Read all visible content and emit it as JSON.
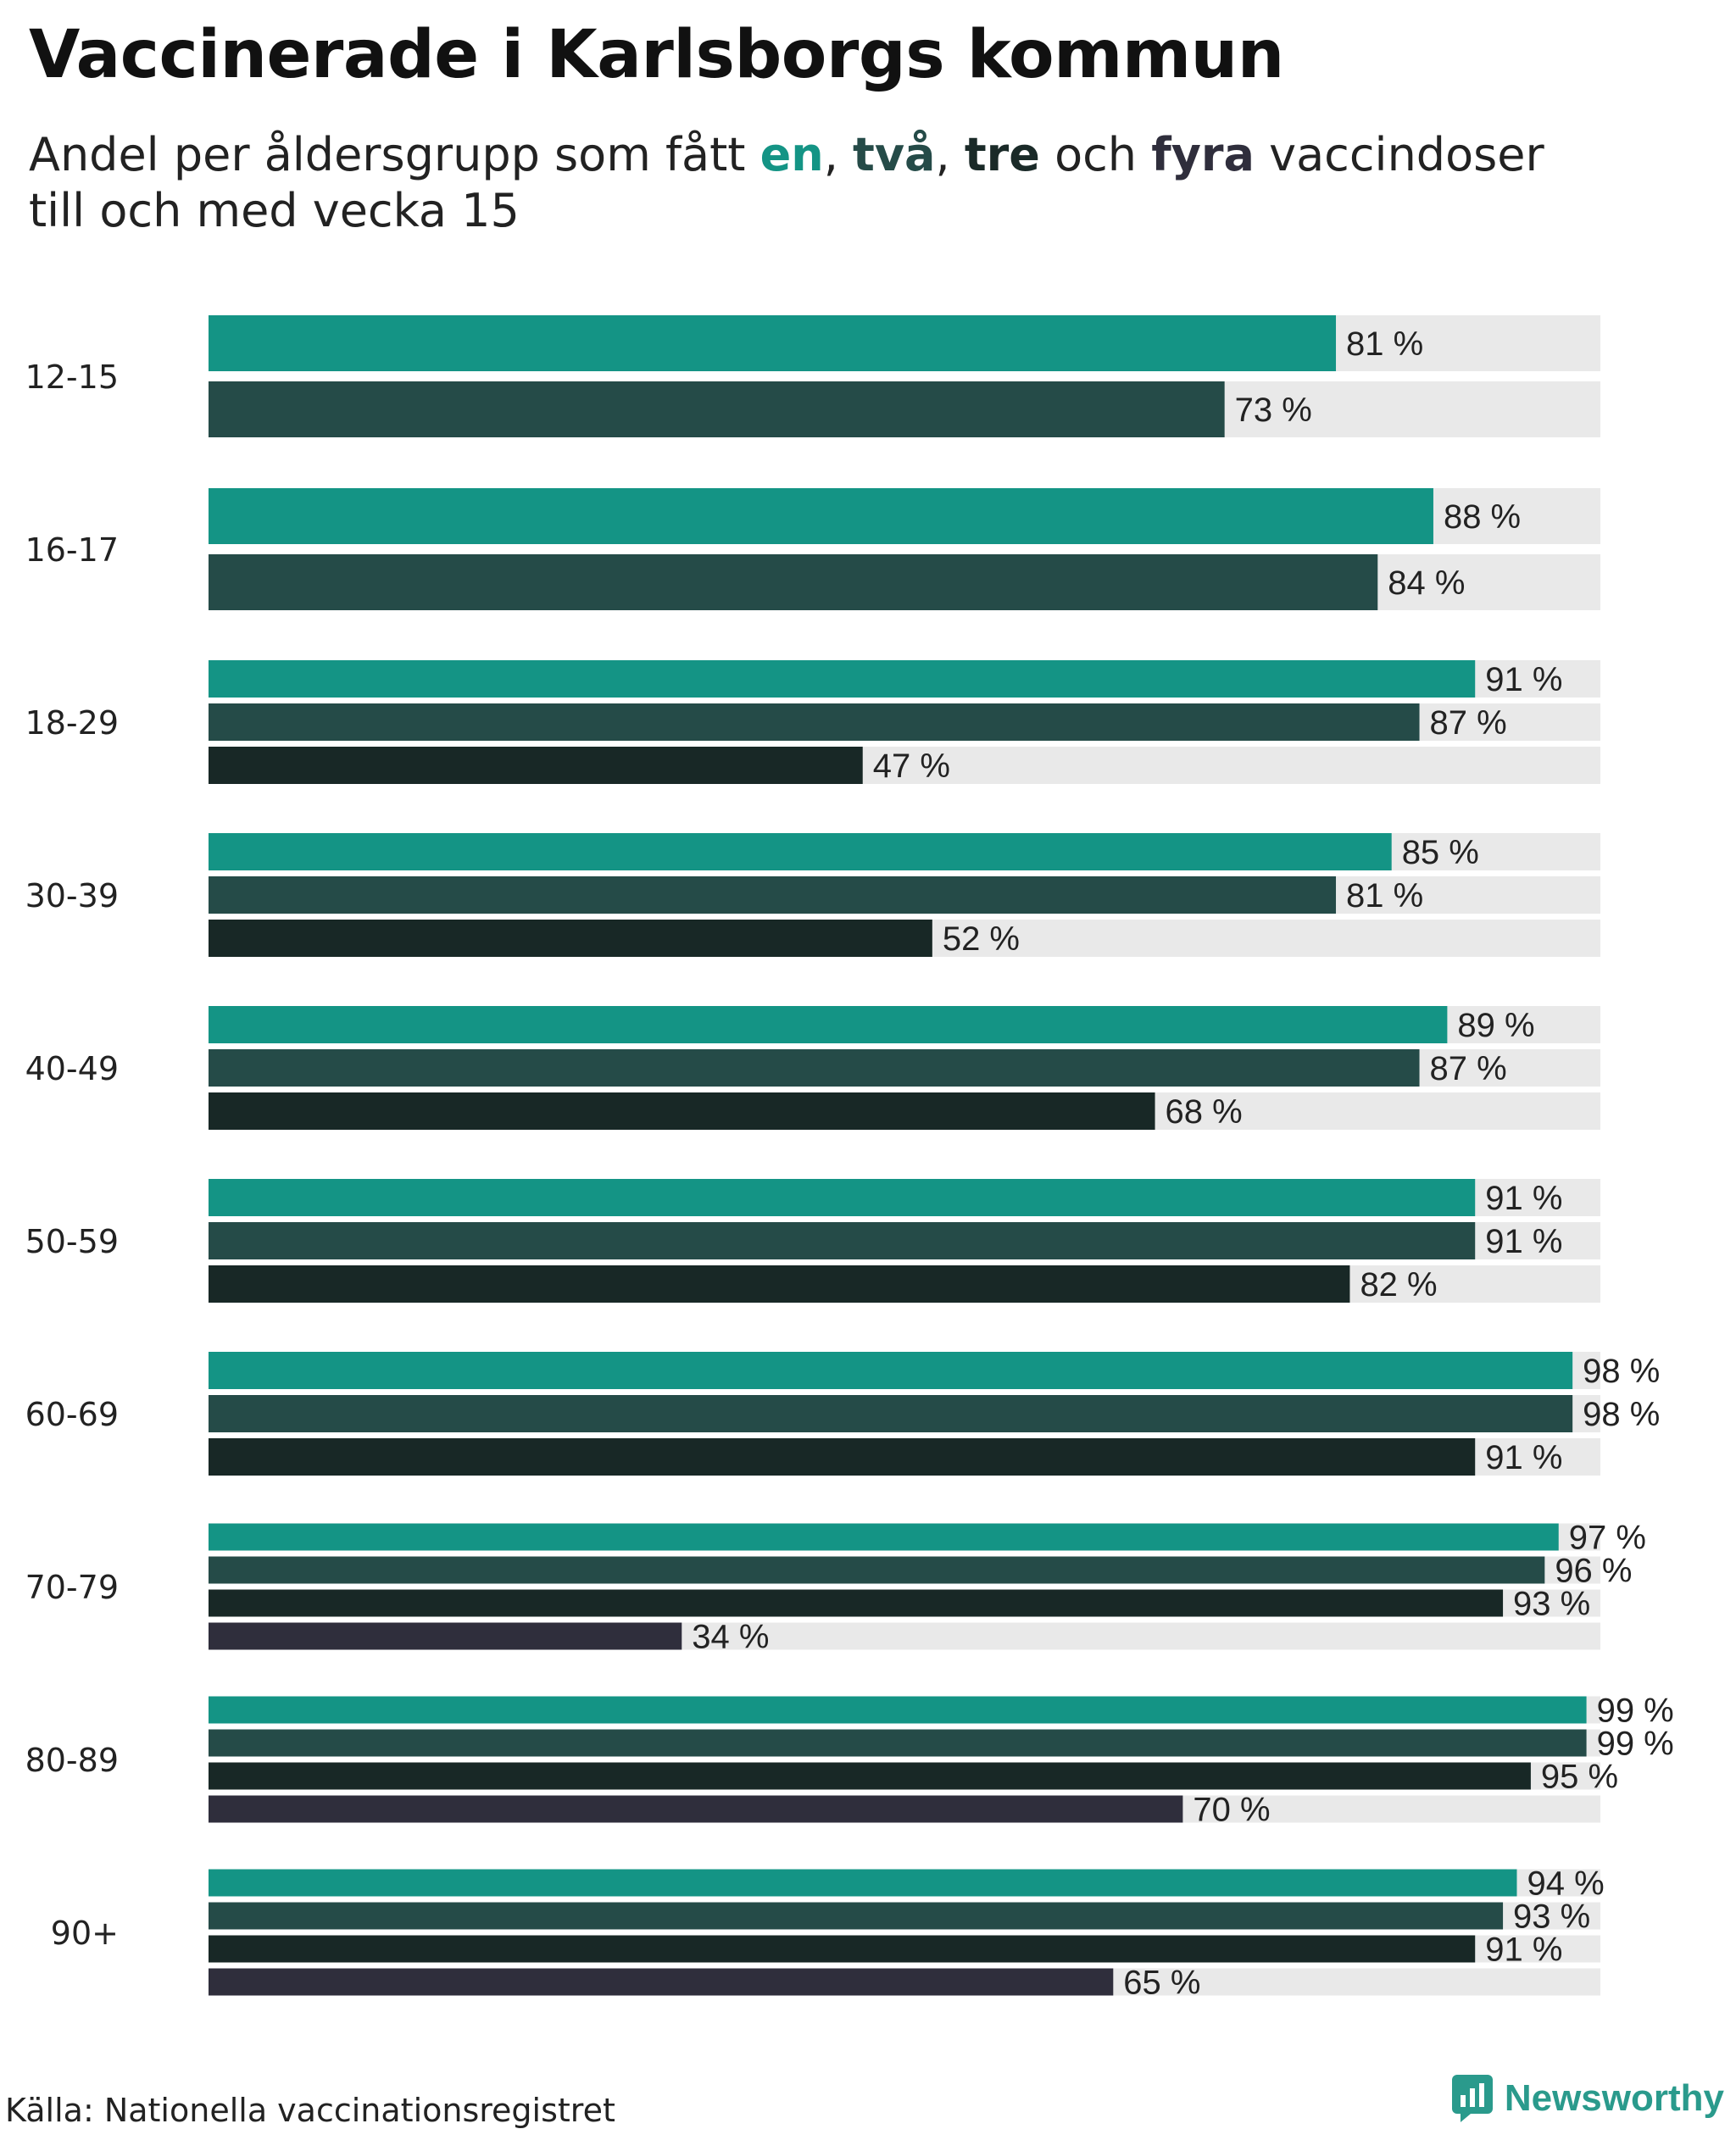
{
  "header": {
    "title": "Vaccinerade i Karlsborgs kommun",
    "subtitle_pre": "Andel per åldersgrupp som fått ",
    "kw1": "en",
    "sep1": ", ",
    "kw2": "två",
    "sep2": ", ",
    "kw3": "tre",
    "sep3": " och ",
    "kw4": "fyra",
    "subtitle_post": " vaccindoser",
    "subtitle_line2": "till och med vecka 15"
  },
  "footer": {
    "source": "Källa: Nationella vaccinationsregistret",
    "brand": "Newsworthy"
  },
  "colors": {
    "dose1": "#149485",
    "dose2": "#254b48",
    "dose3": "#182826",
    "dose4": "#2f2e3c",
    "track": "#e9e9e9"
  },
  "chart_data": {
    "type": "bar",
    "orientation": "horizontal",
    "title": "Vaccinerade i Karlsborgs kommun",
    "subtitle": "Andel per åldersgrupp som fått en, två, tre och fyra vaccindoser till och med vecka 15",
    "xlim": [
      0,
      100
    ],
    "unit": "%",
    "series_names": [
      "en",
      "två",
      "tre",
      "fyra"
    ],
    "groups": [
      {
        "label": "12-15",
        "values": [
          81,
          73
        ]
      },
      {
        "label": "16-17",
        "values": [
          88,
          84
        ]
      },
      {
        "label": "18-29",
        "values": [
          91,
          87,
          47
        ]
      },
      {
        "label": "30-39",
        "values": [
          85,
          81,
          52
        ]
      },
      {
        "label": "40-49",
        "values": [
          89,
          87,
          68
        ]
      },
      {
        "label": "50-59",
        "values": [
          91,
          91,
          82
        ]
      },
      {
        "label": "60-69",
        "values": [
          98,
          98,
          91
        ]
      },
      {
        "label": "70-79",
        "values": [
          97,
          96,
          93,
          34
        ]
      },
      {
        "label": "80-89",
        "values": [
          99,
          99,
          95,
          70
        ]
      },
      {
        "label": "90+",
        "values": [
          94,
          93,
          91,
          65
        ]
      }
    ]
  }
}
